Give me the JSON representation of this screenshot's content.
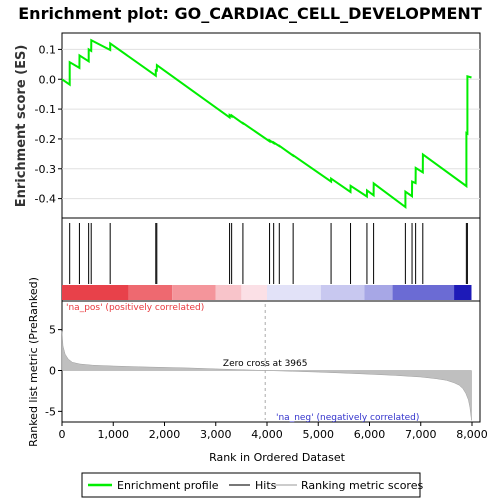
{
  "colors": {
    "profile": "#00ee00",
    "hits": "#000000",
    "metric_fill": "#bfbfbf",
    "pos_label": "#e8383d",
    "neg_label": "#3333cc",
    "zero_line": "#aaaaaa"
  },
  "chart_data": [
    {
      "type": "line",
      "title": "Enrichment plot: GO_CARDIAC_CELL_DEVELOPMENT",
      "ylabel": "Enrichment score (ES)",
      "xlim": [
        0,
        8100
      ],
      "ylim": [
        -0.465,
        0.155
      ],
      "yticks": [
        0.1,
        0.0,
        -0.1,
        -0.2,
        -0.3,
        -0.4
      ],
      "ytick_labels": [
        "0.1",
        "0.0",
        "-0.1",
        "-0.2",
        "-0.3",
        "-0.4"
      ],
      "grid": true,
      "series": [
        {
          "x": [
            0,
            150,
            151,
            340,
            341,
            520,
            521,
            570,
            571,
            940,
            941,
            1830,
            1831,
            1850,
            1851,
            3270,
            3271,
            3310,
            3311,
            3530,
            3531,
            4050,
            4051,
            4130,
            4131,
            4240,
            4241,
            4510,
            4511,
            5250,
            5251,
            5630,
            5631,
            5950,
            5951,
            6080,
            6081,
            6700,
            6701,
            6830,
            6831,
            6900,
            6901,
            7040,
            7041,
            7890,
            7891,
            7910,
            7911,
            7990
          ],
          "y": [
            0.0,
            -0.018,
            0.057,
            0.038,
            0.08,
            0.06,
            0.1,
            0.095,
            0.131,
            0.098,
            0.12,
            0.012,
            0.03,
            0.029,
            0.047,
            -0.128,
            -0.12,
            -0.125,
            -0.121,
            -0.148,
            -0.147,
            -0.208,
            -0.205,
            -0.214,
            -0.212,
            -0.224,
            -0.223,
            -0.256,
            -0.255,
            -0.343,
            -0.333,
            -0.378,
            -0.357,
            -0.393,
            -0.373,
            -0.389,
            -0.349,
            -0.428,
            -0.377,
            -0.392,
            -0.343,
            -0.348,
            -0.297,
            -0.312,
            -0.252,
            -0.358,
            -0.18,
            -0.182,
            0.01,
            0.006
          ]
        }
      ]
    },
    {
      "type": "scatter",
      "name_hidden": true,
      "hits": [
        150,
        340,
        520,
        570,
        940,
        1830,
        1850,
        3270,
        3310,
        3530,
        4050,
        4130,
        4240,
        4510,
        5250,
        5630,
        5950,
        6080,
        6700,
        6830,
        6900,
        7040,
        7890,
        7910
      ]
    },
    {
      "type": "heatmap",
      "segments": [
        {
          "x0": 0,
          "x1": 1300,
          "color": "#e8414a"
        },
        {
          "x0": 1300,
          "x1": 2150,
          "color": "#ee6970"
        },
        {
          "x0": 2150,
          "x1": 3000,
          "color": "#f4959b"
        },
        {
          "x0": 3000,
          "x1": 3500,
          "color": "#f8c4ca"
        },
        {
          "x0": 3500,
          "x1": 4000,
          "color": "#fbe0e6"
        },
        {
          "x0": 4000,
          "x1": 5050,
          "color": "#e2e2f8"
        },
        {
          "x0": 5050,
          "x1": 5900,
          "color": "#c8c8f0"
        },
        {
          "x0": 5900,
          "x1": 6450,
          "color": "#a7a7e6"
        },
        {
          "x0": 6450,
          "x1": 7650,
          "color": "#6b6bd4"
        },
        {
          "x0": 7650,
          "x1": 7990,
          "color": "#1d1ab8"
        }
      ]
    },
    {
      "type": "area",
      "ylabel": "Ranked list metric (PreRanked)",
      "xlabel": "Rank in Ordered Dataset",
      "xlim": [
        0,
        8400
      ],
      "ylim": [
        -6.3,
        8.5
      ],
      "xticks": [
        0,
        1000,
        2000,
        3000,
        4000,
        5000,
        6000,
        7000,
        8000
      ],
      "xtick_labels": [
        "0",
        "1,000",
        "2,000",
        "3,000",
        "4,000",
        "5,000",
        "6,000",
        "7,000",
        "8,000"
      ],
      "yticks": [
        5,
        0,
        -5
      ],
      "ytick_labels": [
        "5",
        "0",
        "-5"
      ],
      "x": [
        0,
        20,
        60,
        120,
        200,
        350,
        600,
        1000,
        1500,
        2000,
        2500,
        3000,
        3500,
        3965,
        4500,
        5000,
        5500,
        6000,
        6500,
        7000,
        7300,
        7500,
        7650,
        7750,
        7820,
        7880,
        7930,
        7960,
        7990
      ],
      "y": [
        4.8,
        3.0,
        2.0,
        1.4,
        1.0,
        0.8,
        0.65,
        0.55,
        0.45,
        0.38,
        0.3,
        0.2,
        0.1,
        0.0,
        -0.1,
        -0.2,
        -0.32,
        -0.45,
        -0.6,
        -0.8,
        -1.0,
        -1.2,
        -1.5,
        -1.8,
        -2.2,
        -2.8,
        -3.6,
        -4.5,
        -6.1
      ],
      "zero_cross_label": "Zero cross at 3965",
      "zero_cross_x": 3965,
      "pos_label": "'na_pos' (positively correlated)",
      "neg_label": "'na_neg' (negatively correlated)"
    }
  ],
  "legend": {
    "items": [
      {
        "label": "Enrichment profile"
      },
      {
        "label": "Hits"
      },
      {
        "label": "Ranking metric scores"
      }
    ]
  }
}
